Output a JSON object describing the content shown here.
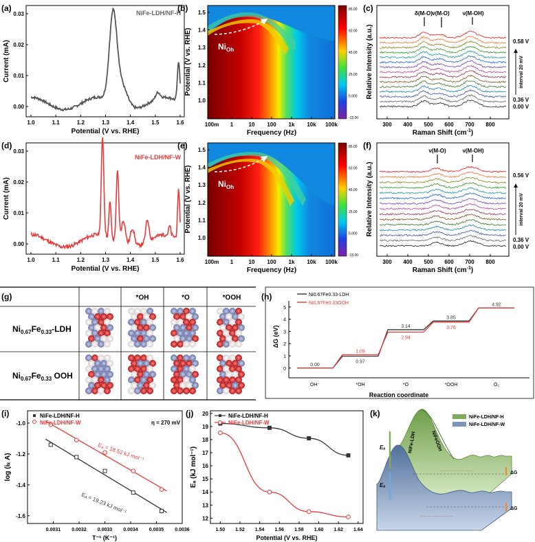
{
  "colors": {
    "black": "#333333",
    "red": "#e8393a",
    "green": "#7fab5a",
    "blue": "#7f95b8"
  },
  "panels": {
    "a": {
      "label": "(a)",
      "legend": "NiFe-LDH/NF-H",
      "ylabel": "Current (mA)",
      "xlabel": "Potential (V vs. RHE)",
      "xticks": [
        "1.0",
        "1.1",
        "1.2",
        "1.3",
        "1.4",
        "1.5",
        "1.6"
      ],
      "yticks": [
        "0.00",
        "0.01",
        "0.02",
        "0.03"
      ]
    },
    "b": {
      "label": "(b)",
      "ylabel": "Potential (V vs. RHE)",
      "xlabel": "Frequency (Hz)",
      "annotation": "Ni",
      "annotation_sub": "Oh",
      "xticks": [
        "100m",
        "1",
        "10",
        "100",
        "1k",
        "10k",
        "100k"
      ],
      "yticks": [
        "1.0",
        "1.1",
        "1.2",
        "1.3",
        "1.4",
        "1.5"
      ],
      "colorbar": [
        "85.00",
        "63.00",
        "45.00",
        "25.00",
        "5.000",
        "-15.00"
      ]
    },
    "c": {
      "label": "(c)",
      "ylabel": "Relative Intensity (a.u.)",
      "xlabel": "Raman Shift (cm",
      "xlabel_sup": "-1",
      "xlabel_end": ")",
      "xticks": [
        "300",
        "400",
        "500",
        "600",
        "700",
        "800"
      ],
      "peaks": [
        "δ(M-O)",
        "ν(M-O)",
        "ν(M-OH)"
      ],
      "v_top": "0.58 V",
      "v_low1": "0.36 V",
      "v_low2": "0.00 V",
      "interval": "interval 20 mV"
    },
    "d": {
      "label": "(d)",
      "legend": "NiFe-LDH/NF-W",
      "ylabel": "Current (mA)",
      "xlabel": "Potential (V vs. RHE)",
      "xticks": [
        "1.0",
        "1.1",
        "1.2",
        "1.3",
        "1.4",
        "1.5",
        "1.6"
      ],
      "yticks": [
        "0.00",
        "0.01",
        "0.02",
        "0.03"
      ]
    },
    "e": {
      "label": "(e)",
      "ylabel": "Potential (V vs. RHE)",
      "xlabel": "Frequency (Hz)",
      "annotation": "Ni",
      "annotation_sub": "Oh",
      "xticks": [
        "100m",
        "1",
        "10",
        "100",
        "1k",
        "10k",
        "100k"
      ],
      "yticks": [
        "1.0",
        "1.1",
        "1.2",
        "1.3",
        "1.4",
        "1.5"
      ],
      "colorbar": [
        "85.00",
        "63.00",
        "45.00",
        "25.00",
        "5.000",
        "-15.00"
      ]
    },
    "f": {
      "label": "(f)",
      "ylabel": "Relative Intensity (a.u.)",
      "xlabel": "Raman Shift (cm",
      "xlabel_sup": "-1",
      "xlabel_end": ")",
      "xticks": [
        "300",
        "400",
        "500",
        "600",
        "700",
        "800"
      ],
      "peaks": [
        "ν(M-O)",
        "ν(M-OH)"
      ],
      "v_top": "0.56 V",
      "v_low1": "0.36 V",
      "v_low2": "0.00 V",
      "interval": "interval 20 mV"
    },
    "g": {
      "label": "(g)",
      "cols": [
        "*OH",
        "*O",
        "*OOH"
      ],
      "rows": [
        {
          "main": "Ni",
          "s1": "0.67",
          "mid": "Fe",
          "s2": "0.33",
          "end": "-LDH"
        },
        {
          "main": "Ni",
          "s1": "0.67",
          "mid": "Fe",
          "s2": "0.33",
          "end": " OOH"
        }
      ]
    },
    "h": {
      "label": "(h)",
      "ylabel": "ΔG (eV)",
      "xlabel": "Reaction coordinate",
      "legend1": "Ni0.67Fe0.33-LDH",
      "legend2": "Ni0.67Fe0.33OOH",
      "steps": [
        "OH⁻",
        "*OH",
        "*O",
        "*OOH",
        "O₂"
      ],
      "yticks": [
        "0",
        "1",
        "2",
        "3",
        "4",
        "5"
      ]
    },
    "i": {
      "label": "(i)",
      "legend1": "NiFe-LDH/NF-H",
      "legend2": "NiFe-LDH/NF-W",
      "eta": "η = 270 mV",
      "ea_red": "Eₐ = 18.52 kJ mol⁻¹",
      "ea_black": "Eₐ = 19.23 kJ mol⁻¹",
      "ylabel": "log (iₖ A)",
      "xlabel": "T⁻¹ (K⁻¹)",
      "xticks": [
        "0.0031",
        "0.0032",
        "0.0033",
        "0.0034",
        "0.0035",
        "0.0036"
      ],
      "yticks": [
        "-1.0",
        "-1.2",
        "-1.4",
        "-1.6"
      ]
    },
    "j": {
      "label": "(j)",
      "legend1": "NiFe-LDH/NF-H",
      "legend2": "NiFe-LDH/NF-W",
      "ylabel": "Eₐ (kJ mol⁻¹)",
      "xlabel": "Potential (V vs. RHE)",
      "xticks": [
        "1.50",
        "1.52",
        "1.54",
        "1.56",
        "1.58",
        "1.60",
        "1.62",
        "1.64"
      ],
      "yticks": [
        "12",
        "13",
        "14",
        "15",
        "16",
        "17",
        "18",
        "19",
        "20"
      ]
    },
    "k": {
      "label": "(k)",
      "legend1": "NiFe-LDH/NF-H",
      "legend2": "NiFe-LDH/NF-W",
      "ea": "Eₐ",
      "dg": "ΔG",
      "ldh": "NiFe-LDH",
      "ooh": "NiFeOOH"
    }
  },
  "chart_data": [
    {
      "id": "h",
      "type": "line",
      "title": "",
      "xlabel": "Reaction coordinate",
      "ylabel": "ΔG (eV)",
      "categories": [
        "OH⁻",
        "*OH",
        "*O",
        "*OOH",
        "O₂"
      ],
      "ylim": [
        -0.8,
        5.5
      ],
      "series": [
        {
          "name": "Ni0.67Fe0.33-LDH",
          "values": [
            0.0,
            0.97,
            3.14,
            3.85,
            4.92
          ]
        },
        {
          "name": "Ni0.67Fe0.33OOH",
          "values": [
            0.0,
            1.09,
            2.94,
            3.76,
            4.92
          ]
        }
      ],
      "data_labels": [
        "0.00",
        "0.97",
        "1.09",
        "3.14",
        "2.94",
        "3.85",
        "3.76",
        "4.92"
      ]
    },
    {
      "id": "i",
      "type": "scatter",
      "xlabel": "T⁻¹ (K⁻¹)",
      "ylabel": "log (iₖ A)",
      "xlim": [
        0.003,
        0.0036
      ],
      "ylim": [
        -1.65,
        -0.92
      ],
      "series": [
        {
          "name": "NiFe-LDH/NF-H",
          "x": [
            0.00309,
            0.00319,
            0.0033,
            0.00341,
            0.00352
          ],
          "y": [
            -1.14,
            -1.22,
            -1.31,
            -1.45,
            -1.57
          ]
        },
        {
          "name": "NiFe-LDH/NF-W",
          "x": [
            0.00309,
            0.00319,
            0.0033,
            0.00341,
            0.00352
          ],
          "y": [
            -1.01,
            -1.11,
            -1.19,
            -1.31,
            -1.43
          ]
        }
      ]
    },
    {
      "id": "j",
      "type": "line",
      "xlabel": "Potential (V vs. RHE)",
      "ylabel": "Eₐ (kJ mol⁻¹)",
      "xlim": [
        1.49,
        1.645
      ],
      "ylim": [
        11.6,
        20.2
      ],
      "series": [
        {
          "name": "NiFe-LDH/NF-H",
          "x": [
            1.5,
            1.55,
            1.59,
            1.63
          ],
          "y": [
            19.23,
            18.9,
            18.1,
            16.8
          ]
        },
        {
          "name": "NiFe-LDH/NF-W",
          "x": [
            1.5,
            1.55,
            1.59,
            1.63
          ],
          "y": [
            18.52,
            14.0,
            12.5,
            12.1
          ]
        }
      ]
    }
  ]
}
